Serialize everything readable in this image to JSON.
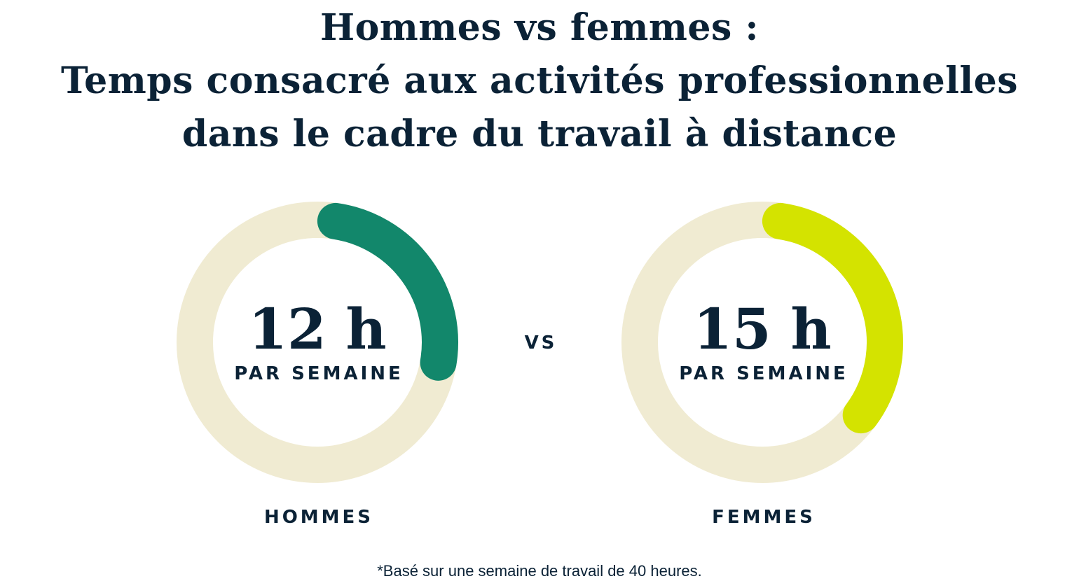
{
  "chart_data": {
    "type": "donut",
    "title_lines": [
      "Hommes vs femmes :",
      "Temps consacré aux activités professionnelles",
      "dans le cadre du travail à distance"
    ],
    "total": 40,
    "unit": "h",
    "separator": "VS",
    "charts": [
      {
        "category": "HOMMES",
        "value": 12,
        "value_label": "12 h",
        "sublabel": "PAR SEMAINE",
        "color": "#12876B"
      },
      {
        "category": "FEMMES",
        "value": 15,
        "value_label": "15 h",
        "sublabel": "PAR SEMAINE",
        "color": "#D4E300"
      }
    ],
    "track_color": "#F0EBD2",
    "footnote": "*Basé sur une semaine de travail de 40 heures."
  }
}
